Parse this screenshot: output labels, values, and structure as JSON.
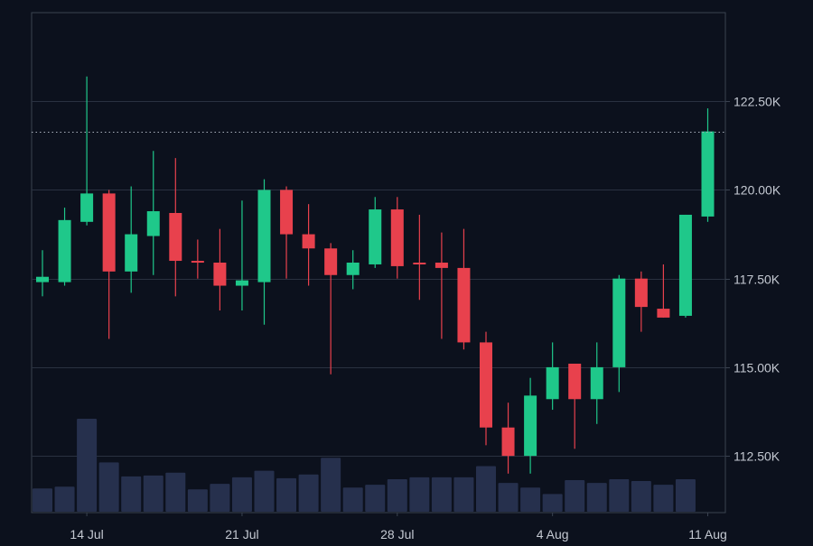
{
  "colors": {
    "background": "#0c111d",
    "gridline": "#2a3140",
    "frame": "#3a4250",
    "axis_text": "#c4c9d2",
    "up": "#1fc88a",
    "down": "#e8414d",
    "volume": "#26304d",
    "current_price_line": "#a9b0bc"
  },
  "chart_data": {
    "type": "candlestick",
    "title": "",
    "xlabel": "",
    "ylabel": "",
    "ylim": [
      110900,
      125000
    ],
    "y_ticks": [
      112500,
      115000,
      117500,
      120000,
      122500
    ],
    "y_tick_labels": [
      "112.50K",
      "115.00K",
      "117.50K",
      "120.00K",
      "122.50K"
    ],
    "x_ticks": [
      {
        "index": 2,
        "label": "14 Jul"
      },
      {
        "index": 9,
        "label": "21 Jul"
      },
      {
        "index": 16,
        "label": "28 Jul"
      },
      {
        "index": 23,
        "label": "4 Aug"
      },
      {
        "index": 30,
        "label": "11 Aug"
      }
    ],
    "current_price": 121650,
    "grid": true,
    "candles": [
      {
        "date": "12 Jul",
        "open": 117400,
        "high": 118300,
        "low": 117000,
        "close": 117550,
        "volume": 0.25
      },
      {
        "date": "13 Jul",
        "open": 117400,
        "high": 119500,
        "low": 117300,
        "close": 119150,
        "volume": 0.27
      },
      {
        "date": "14 Jul",
        "open": 119100,
        "high": 123200,
        "low": 119000,
        "close": 119900,
        "volume": 1.0
      },
      {
        "date": "15 Jul",
        "open": 119900,
        "high": 120000,
        "low": 115800,
        "close": 117700,
        "volume": 0.53
      },
      {
        "date": "16 Jul",
        "open": 117700,
        "high": 120100,
        "low": 117100,
        "close": 118750,
        "volume": 0.38
      },
      {
        "date": "17 Jul",
        "open": 118700,
        "high": 121100,
        "low": 117600,
        "close": 119400,
        "volume": 0.39
      },
      {
        "date": "18 Jul",
        "open": 119350,
        "high": 120900,
        "low": 117000,
        "close": 118000,
        "volume": 0.42
      },
      {
        "date": "19 Jul",
        "open": 118000,
        "high": 118600,
        "low": 117500,
        "close": 117950,
        "volume": 0.24
      },
      {
        "date": "20 Jul",
        "open": 117950,
        "high": 118900,
        "low": 116600,
        "close": 117300,
        "volume": 0.3
      },
      {
        "date": "21 Jul",
        "open": 117300,
        "high": 119700,
        "low": 116600,
        "close": 117450,
        "volume": 0.37
      },
      {
        "date": "22 Jul",
        "open": 117400,
        "high": 120300,
        "low": 116200,
        "close": 120000,
        "volume": 0.44
      },
      {
        "date": "23 Jul",
        "open": 120000,
        "high": 120100,
        "low": 117500,
        "close": 118750,
        "volume": 0.36
      },
      {
        "date": "24 Jul",
        "open": 118750,
        "high": 119600,
        "low": 117300,
        "close": 118350,
        "volume": 0.4
      },
      {
        "date": "25 Jul",
        "open": 118350,
        "high": 118500,
        "low": 114800,
        "close": 117600,
        "volume": 0.58
      },
      {
        "date": "26 Jul",
        "open": 117600,
        "high": 118300,
        "low": 117200,
        "close": 117950,
        "volume": 0.26
      },
      {
        "date": "27 Jul",
        "open": 117900,
        "high": 119800,
        "low": 117800,
        "close": 119450,
        "volume": 0.29
      },
      {
        "date": "28 Jul",
        "open": 119450,
        "high": 119800,
        "low": 117500,
        "close": 117850,
        "volume": 0.35
      },
      {
        "date": "29 Jul",
        "open": 117950,
        "high": 119300,
        "low": 116900,
        "close": 117900,
        "volume": 0.37
      },
      {
        "date": "30 Jul",
        "open": 117950,
        "high": 118800,
        "low": 115800,
        "close": 117800,
        "volume": 0.37
      },
      {
        "date": "31 Jul",
        "open": 117800,
        "high": 118900,
        "low": 115500,
        "close": 115700,
        "volume": 0.37
      },
      {
        "date": "1 Aug",
        "open": 115700,
        "high": 116000,
        "low": 112800,
        "close": 113300,
        "volume": 0.49
      },
      {
        "date": "2 Aug",
        "open": 113300,
        "high": 114000,
        "low": 112000,
        "close": 112500,
        "volume": 0.31
      },
      {
        "date": "3 Aug",
        "open": 112500,
        "high": 114700,
        "low": 112000,
        "close": 114200,
        "volume": 0.26
      },
      {
        "date": "4 Aug",
        "open": 114100,
        "high": 115700,
        "low": 113800,
        "close": 115000,
        "volume": 0.19
      },
      {
        "date": "5 Aug",
        "open": 115100,
        "high": 115100,
        "low": 112700,
        "close": 114100,
        "volume": 0.34
      },
      {
        "date": "6 Aug",
        "open": 114100,
        "high": 115700,
        "low": 113400,
        "close": 115000,
        "volume": 0.31
      },
      {
        "date": "7 Aug",
        "open": 115000,
        "high": 117600,
        "low": 114300,
        "close": 117500,
        "volume": 0.35
      },
      {
        "date": "8 Aug",
        "open": 117500,
        "high": 117700,
        "low": 116000,
        "close": 116700,
        "volume": 0.33
      },
      {
        "date": "9 Aug",
        "open": 116650,
        "high": 117900,
        "low": 116400,
        "close": 116400,
        "volume": 0.29
      },
      {
        "date": "10 Aug",
        "open": 116450,
        "high": 119300,
        "low": 116400,
        "close": 119300,
        "volume": 0.35
      },
      {
        "date": "11 Aug",
        "open": 119250,
        "high": 122300,
        "low": 119100,
        "close": 121650,
        "volume": null
      }
    ]
  }
}
